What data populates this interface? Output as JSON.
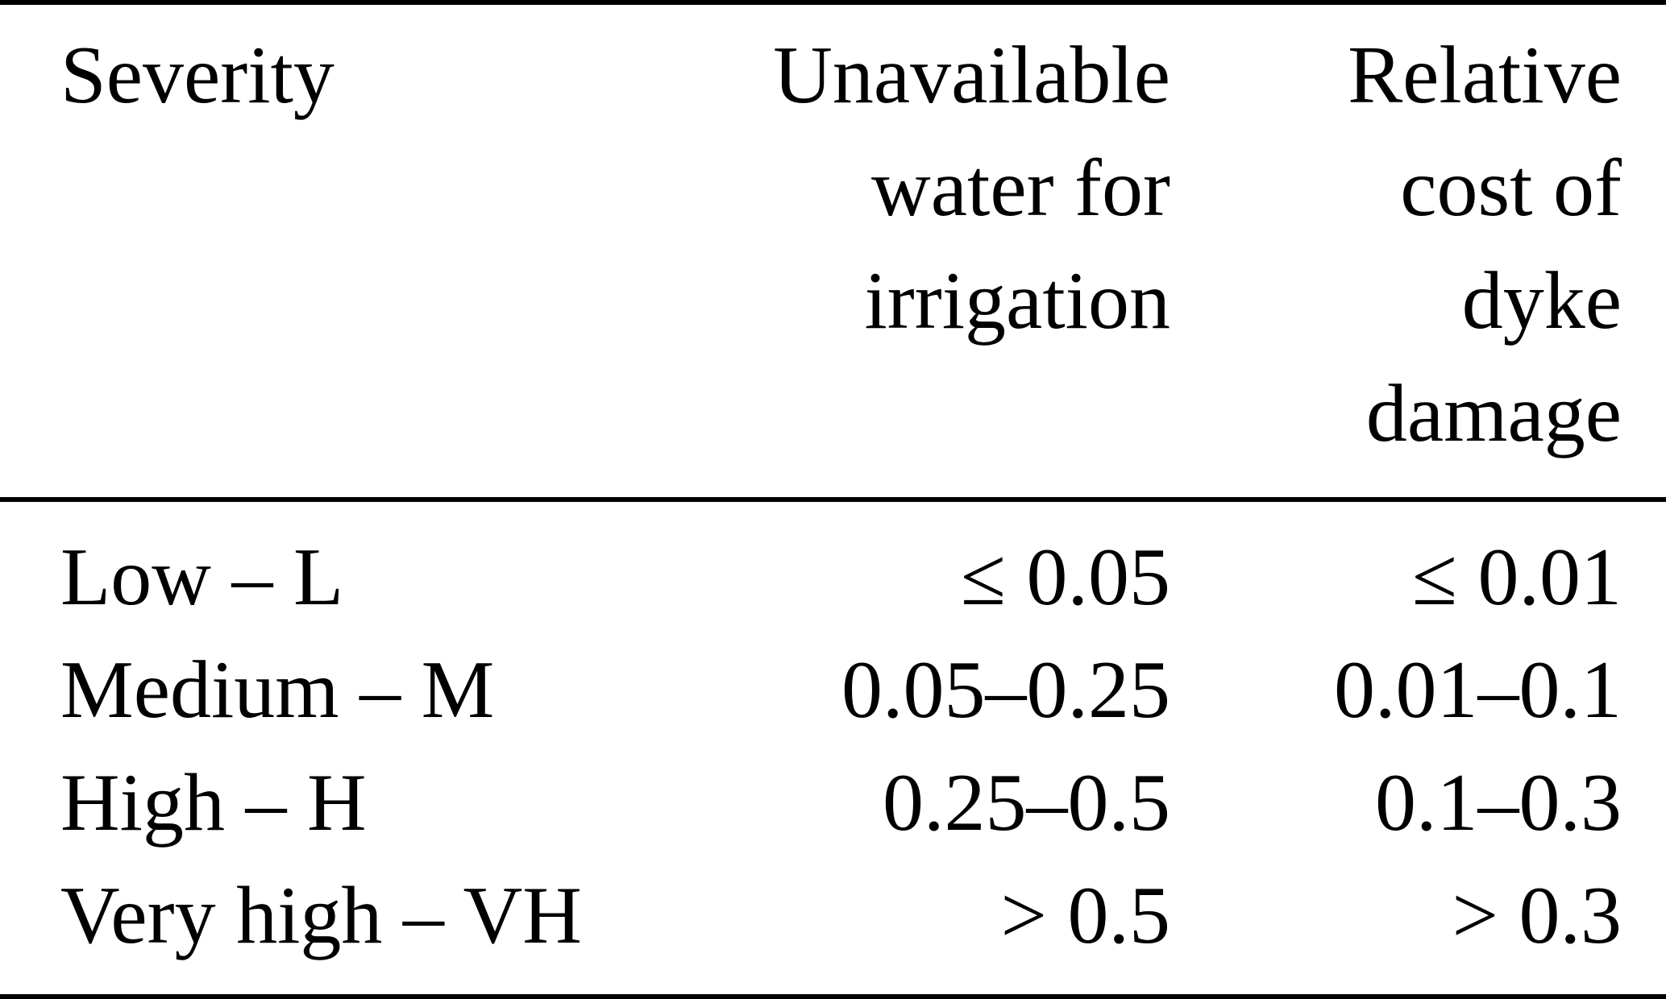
{
  "figure": {
    "background": "#ffffff",
    "text_color": "#000000",
    "rule_color": "#000000"
  },
  "chart_data": {
    "type": "table",
    "title": "",
    "columns": [
      "Severity",
      "Unavailable water for irrigation",
      "Relative cost of dyke damage"
    ],
    "header_lines": {
      "severity": [
        "Severity"
      ],
      "unavailable_water": [
        "Unavailable",
        "water for",
        "irrigation"
      ],
      "relative_cost": [
        "Relative",
        "cost of",
        "dyke",
        "damage"
      ]
    },
    "rows": [
      {
        "severity": "Low – L",
        "unavailable_water_for_irrigation": "≤ 0.05",
        "relative_cost_of_dyke_damage": "≤ 0.01"
      },
      {
        "severity": "Medium – M",
        "unavailable_water_for_irrigation": "0.05–0.25",
        "relative_cost_of_dyke_damage": "0.01–0.1"
      },
      {
        "severity": "High – H",
        "unavailable_water_for_irrigation": "0.25–0.5",
        "relative_cost_of_dyke_damage": "0.1–0.3"
      },
      {
        "severity": "Very high – VH",
        "unavailable_water_for_irrigation": "> 0.5",
        "relative_cost_of_dyke_damage": "> 0.3"
      }
    ]
  }
}
